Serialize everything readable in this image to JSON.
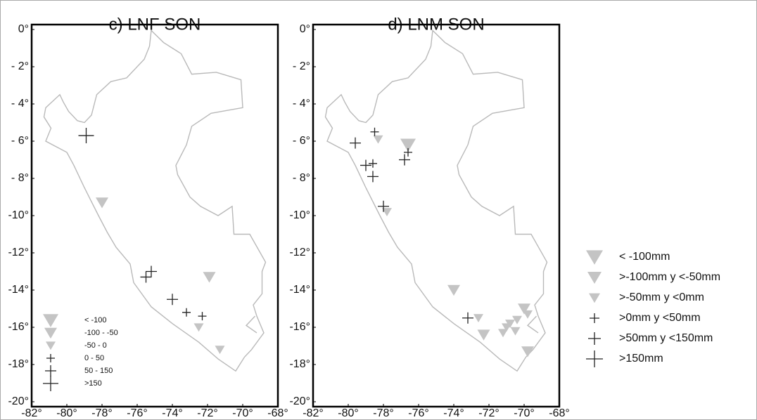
{
  "panels": [
    {
      "title": "c) LNF SON",
      "xlim": [
        -82,
        -68
      ],
      "ylim": [
        -20,
        0
      ],
      "xticks": [
        {
          "value": -82,
          "label": "-82°"
        },
        {
          "value": -80,
          "label": "-80°"
        },
        {
          "value": -78,
          "label": "-78°"
        },
        {
          "value": -76,
          "label": "-76°"
        },
        {
          "value": -74,
          "label": "-74°"
        },
        {
          "value": -72,
          "label": "-72°"
        },
        {
          "value": -70,
          "label": "-70°"
        },
        {
          "value": -68,
          "label": "-68°"
        }
      ],
      "yticks": [
        {
          "value": 0,
          "label": "0°"
        },
        {
          "value": -2,
          "label": "- 2°"
        },
        {
          "value": -4,
          "label": "- 4°"
        },
        {
          "value": -6,
          "label": "- 6°"
        },
        {
          "value": -8,
          "label": "- 8°"
        },
        {
          "value": -10,
          "label": "-10°"
        },
        {
          "value": -12,
          "label": "-12°"
        },
        {
          "value": -14,
          "label": "-14°"
        },
        {
          "value": -16,
          "label": "-16°"
        },
        {
          "value": -18,
          "label": "-18°"
        },
        {
          "value": -20,
          "label": "-20°"
        }
      ],
      "legend": "inside",
      "series": [
        {
          "name": "< -100",
          "marker": "triangle",
          "color": "#c4c4c4",
          "lon": [],
          "lat": []
        },
        {
          "name": "-100 - -50",
          "marker": "triangle",
          "color": "#c4c4c4",
          "lon": [
            -78.0,
            -71.9
          ],
          "lat": [
            -9.3,
            -13.3
          ]
        },
        {
          "name": "-50 - 0",
          "marker": "triangle",
          "color": "#c4c4c4",
          "lon": [
            -72.5,
            -71.3
          ],
          "lat": [
            -16.0,
            -17.2
          ]
        },
        {
          "name": "0 - 50",
          "marker": "plus",
          "color": "#222222",
          "lon": [
            -73.2,
            -72.3
          ],
          "lat": [
            -15.2,
            -15.4
          ]
        },
        {
          "name": "50 - 150",
          "marker": "plus",
          "color": "#222222",
          "lon": [
            -75.5,
            -75.2,
            -74.0
          ],
          "lat": [
            -13.3,
            -13.0,
            -14.5
          ]
        },
        {
          "name": ">150",
          "marker": "plus",
          "color": "#222222",
          "lon": [
            -78.9
          ],
          "lat": [
            -5.7
          ]
        }
      ]
    },
    {
      "title": "d) LNM SON",
      "xlim": [
        -82,
        -68
      ],
      "ylim": [
        -20,
        0
      ],
      "xticks": [
        {
          "value": -82,
          "label": "-82°"
        },
        {
          "value": -80,
          "label": "-80°"
        },
        {
          "value": -78,
          "label": "-78°"
        },
        {
          "value": -76,
          "label": "-76°"
        },
        {
          "value": -74,
          "label": "-74°"
        },
        {
          "value": -72,
          "label": "-72°"
        },
        {
          "value": -70,
          "label": "-70°"
        },
        {
          "value": -68,
          "label": "-68°"
        }
      ],
      "yticks": [
        {
          "value": 0,
          "label": "0°"
        },
        {
          "value": -2,
          "label": "- 2°"
        },
        {
          "value": -4,
          "label": "- 4°"
        },
        {
          "value": -6,
          "label": "- 6°"
        },
        {
          "value": -8,
          "label": "- 8°"
        },
        {
          "value": -10,
          "label": "-10°"
        },
        {
          "value": -12,
          "label": "-12°"
        },
        {
          "value": -14,
          "label": "-14°"
        },
        {
          "value": -16,
          "label": "-16°"
        },
        {
          "value": -18,
          "label": "-18°"
        },
        {
          "value": -20,
          "label": "-20°"
        }
      ],
      "legend": "outside right",
      "series": [
        {
          "name": "< -100mm",
          "marker": "triangle",
          "color": "#c4c4c4",
          "lon": [
            -76.6
          ],
          "lat": [
            -6.2
          ]
        },
        {
          "name": ">-100mm y <-50mm",
          "marker": "triangle",
          "color": "#c4c4c4",
          "lon": [
            -74.0,
            -72.3,
            -69.8,
            -70.0
          ],
          "lat": [
            -14.0,
            -16.4,
            -17.3,
            -15.0
          ]
        },
        {
          "name": ">-50mm y <0mm",
          "marker": "triangle",
          "color": "#c4c4c4",
          "lon": [
            -78.3,
            -77.8,
            -72.6,
            -71.2,
            -71.0,
            -70.4,
            -70.8,
            -70.5,
            -69.8
          ],
          "lat": [
            -5.9,
            -9.8,
            -15.5,
            -16.3,
            -16.0,
            -15.6,
            -15.8,
            -16.2,
            -15.3
          ]
        },
        {
          "name": ">0mm y <50mm",
          "marker": "plus",
          "color": "#222222",
          "lon": [
            -78.5,
            -78.6,
            -76.6
          ],
          "lat": [
            -5.5,
            -7.2,
            -6.6
          ]
        },
        {
          "name": ">50mm y <150mm",
          "marker": "plus",
          "color": "#222222",
          "lon": [
            -79.6,
            -79.0,
            -78.6,
            -78.0,
            -76.8,
            -73.2
          ],
          "lat": [
            -6.1,
            -7.3,
            -7.9,
            -9.5,
            -7.0,
            -15.5
          ]
        },
        {
          "name": ">150mm",
          "marker": "plus",
          "color": "#222222",
          "lon": [],
          "lat": []
        }
      ]
    }
  ]
}
